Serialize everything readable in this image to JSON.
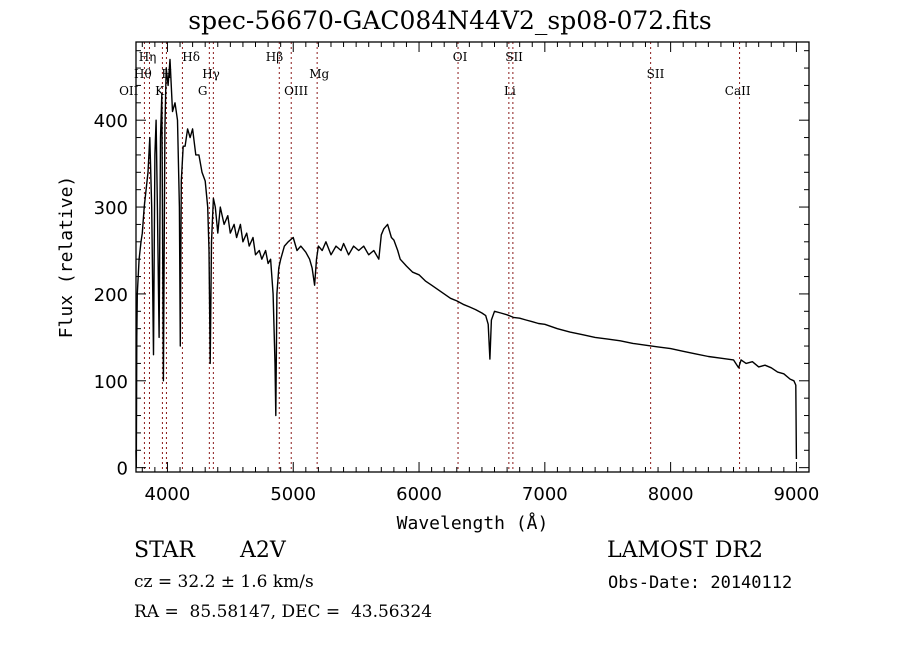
{
  "chart_data": {
    "type": "line",
    "title": "spec-56670-GAC084N44V2_sp08-072.fits",
    "xlabel": "Wavelength (Å)",
    "ylabel": "Flux (relative)",
    "xlim": [
      3750,
      9100
    ],
    "ylim": [
      -5,
      490
    ],
    "xticks": [
      4000,
      5000,
      6000,
      7000,
      8000,
      9000
    ],
    "yticks": [
      0,
      100,
      200,
      300,
      400
    ],
    "grid": false,
    "series": [
      {
        "name": "spectrum",
        "color": "#000000",
        "x": [
          3750,
          3752,
          3756,
          3760,
          3775,
          3790,
          3800,
          3815,
          3830,
          3845,
          3860,
          3875,
          3889,
          3900,
          3910,
          3920,
          3934,
          3945,
          3955,
          3968,
          3980,
          3990,
          4005,
          4020,
          4040,
          4060,
          4080,
          4095,
          4102,
          4110,
          4125,
          4140,
          4160,
          4180,
          4200,
          4225,
          4250,
          4275,
          4300,
          4320,
          4330,
          4340,
          4350,
          4365,
          4380,
          4400,
          4420,
          4450,
          4480,
          4500,
          4530,
          4550,
          4580,
          4600,
          4630,
          4650,
          4680,
          4700,
          4730,
          4750,
          4780,
          4800,
          4820,
          4840,
          4855,
          4861,
          4870,
          4885,
          4900,
          4930,
          4960,
          5000,
          5030,
          5060,
          5100,
          5130,
          5150,
          5170,
          5185,
          5200,
          5230,
          5260,
          5300,
          5340,
          5380,
          5400,
          5440,
          5480,
          5520,
          5560,
          5600,
          5640,
          5680,
          5700,
          5720,
          5750,
          5780,
          5800,
          5830,
          5850,
          5900,
          5950,
          6000,
          6050,
          6100,
          6150,
          6200,
          6250,
          6300,
          6350,
          6400,
          6450,
          6500,
          6530,
          6550,
          6563,
          6575,
          6600,
          6650,
          6700,
          6750,
          6800,
          6850,
          6900,
          6950,
          7000,
          7100,
          7200,
          7300,
          7400,
          7500,
          7600,
          7700,
          7800,
          7900,
          8000,
          8100,
          8200,
          8300,
          8400,
          8500,
          8540,
          8560,
          8600,
          8650,
          8700,
          8750,
          8800,
          8850,
          8900,
          8950,
          8980,
          8995,
          9000
        ],
        "y": [
          20,
          0,
          150,
          200,
          240,
          260,
          270,
          300,
          320,
          340,
          380,
          300,
          130,
          360,
          400,
          300,
          150,
          380,
          430,
          100,
          390,
          460,
          440,
          470,
          410,
          420,
          400,
          300,
          140,
          330,
          370,
          370,
          390,
          380,
          390,
          360,
          360,
          340,
          330,
          300,
          250,
          120,
          260,
          310,
          300,
          270,
          300,
          280,
          290,
          270,
          280,
          265,
          280,
          260,
          270,
          255,
          265,
          245,
          250,
          240,
          250,
          235,
          240,
          200,
          120,
          60,
          200,
          230,
          240,
          255,
          260,
          265,
          250,
          255,
          248,
          240,
          230,
          210,
          240,
          255,
          250,
          260,
          245,
          255,
          250,
          258,
          245,
          255,
          250,
          255,
          245,
          250,
          240,
          268,
          275,
          280,
          265,
          262,
          250,
          240,
          232,
          225,
          222,
          215,
          210,
          205,
          200,
          195,
          192,
          188,
          185,
          182,
          178,
          175,
          165,
          125,
          170,
          180,
          178,
          176,
          173,
          172,
          170,
          168,
          166,
          165,
          160,
          156,
          153,
          150,
          148,
          146,
          143,
          141,
          139,
          137,
          134,
          131,
          128,
          126,
          124,
          115,
          124,
          120,
          122,
          116,
          118,
          115,
          110,
          108,
          102,
          100,
          95,
          10
        ]
      }
    ],
    "line_markers": [
      {
        "label": "Hη",
        "wavelength": 3835,
        "row": 1
      },
      {
        "label": "Hθ",
        "wavelength": 3798,
        "row": 2
      },
      {
        "label": "OII",
        "wavelength": 3727,
        "row": 3
      },
      {
        "label": "H",
        "wavelength": 3968,
        "row": 2
      },
      {
        "label": "K",
        "wavelength": 3934,
        "row": 3
      },
      {
        "label": "Hδ",
        "wavelength": 4102,
        "row": 1
      },
      {
        "label": "Hγ",
        "wavelength": 4340,
        "row": 2
      },
      {
        "label": "G",
        "wavelength": 4305,
        "row": 3
      },
      {
        "label": "Hβ",
        "wavelength": 4861,
        "row": 1
      },
      {
        "label": "OIII",
        "wavelength": 4959,
        "row": 3
      },
      {
        "label": "Mg",
        "wavelength": 5175,
        "row": 2
      },
      {
        "label": "OI",
        "wavelength": 6300,
        "row": 1
      },
      {
        "label": "SII",
        "wavelength": 6717,
        "row": 1
      },
      {
        "label": "Li",
        "wavelength": 6707,
        "row": 3
      },
      {
        "label": "SII",
        "wavelength": 7841,
        "row": 2
      },
      {
        "label": "CaII",
        "wavelength": 8542,
        "row": 3
      }
    ],
    "marker_line_positions": [
      3817,
      3857,
      3960,
      3992,
      4119,
      4333,
      4365,
      4889,
      4984,
      5190,
      6310,
      6714,
      6746,
      7841,
      8548
    ],
    "marker_color": "#8b1a1a"
  },
  "info": {
    "object_class": "STAR",
    "subclass": "A2V",
    "redshift_line": "cz = 32.2 ± 1.6 km/s",
    "coords_line": "RA =  85.58147, DEC =  43.56324",
    "survey": "LAMOST DR2",
    "obs_date": "Obs-Date: 20140112"
  }
}
